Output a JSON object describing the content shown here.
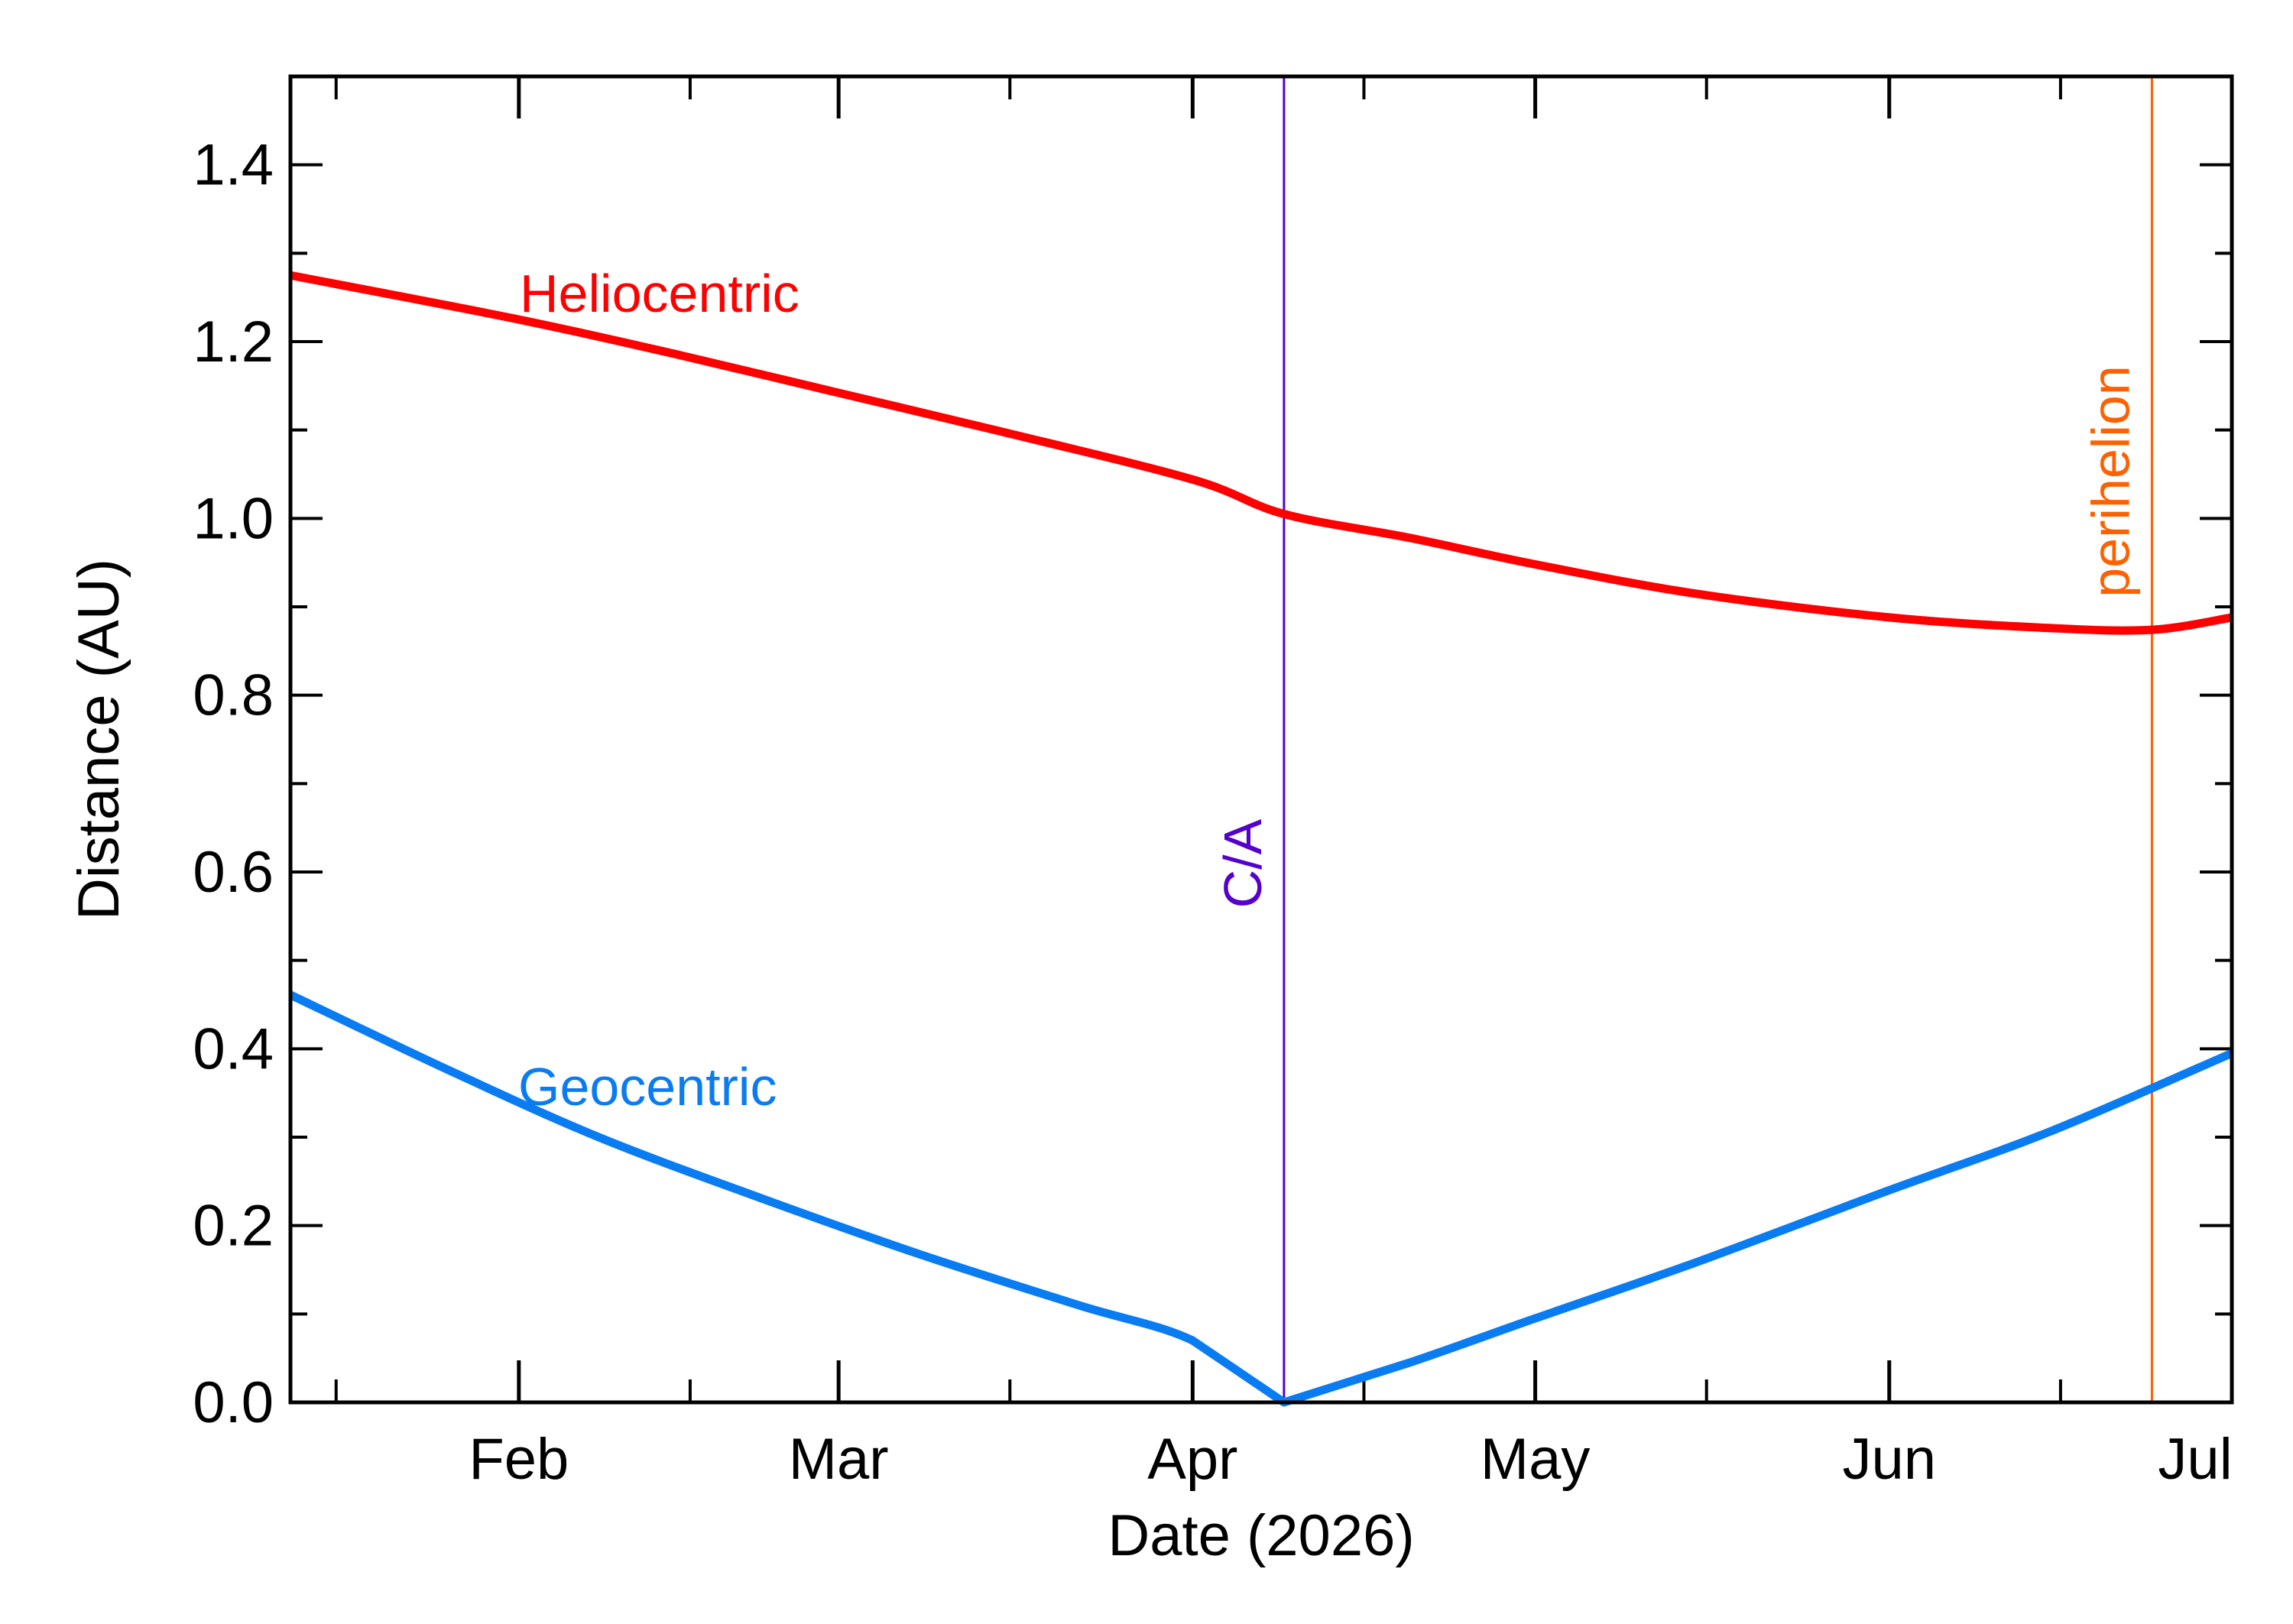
{
  "chart_data": {
    "type": "line",
    "title": "",
    "xlabel": "Date (2026)",
    "ylabel": "Distance (AU)",
    "xlim": [
      "2026-01-12",
      "2026-07-01"
    ],
    "ylim": [
      0.0,
      1.5
    ],
    "x_tick_labels": [
      "Feb",
      "Mar",
      "Apr",
      "May",
      "Jun",
      "Jul"
    ],
    "y_tick_labels": [
      "0.0",
      "0.2",
      "0.4",
      "0.6",
      "0.8",
      "1.0",
      "1.2",
      "1.4"
    ],
    "series": [
      {
        "name": "Heliocentric",
        "color": "#ff0000",
        "points": [
          [
            "2026-01-12",
            1.275
          ],
          [
            "2026-02-01",
            1.225
          ],
          [
            "2026-02-15",
            1.185
          ],
          [
            "2026-03-01",
            1.142
          ],
          [
            "2026-03-15",
            1.099
          ],
          [
            "2026-04-01",
            1.044
          ],
          [
            "2026-04-09",
            1.005
          ],
          [
            "2026-04-20",
            0.978
          ],
          [
            "2026-05-01",
            0.948
          ],
          [
            "2026-05-15",
            0.915
          ],
          [
            "2026-06-01",
            0.888
          ],
          [
            "2026-06-15",
            0.876
          ],
          [
            "2026-06-24",
            0.874
          ],
          [
            "2026-07-01",
            0.888
          ]
        ]
      },
      {
        "name": "Geocentric",
        "color": "#0a7cf2",
        "points": [
          [
            "2026-01-12",
            0.461
          ],
          [
            "2026-01-26",
            0.375
          ],
          [
            "2026-02-08",
            0.3
          ],
          [
            "2026-02-22",
            0.232
          ],
          [
            "2026-03-08",
            0.168
          ],
          [
            "2026-03-22",
            0.11
          ],
          [
            "2026-04-01",
            0.07
          ],
          [
            "2026-04-09",
            0.0
          ],
          [
            "2026-04-20",
            0.045
          ],
          [
            "2026-05-01",
            0.095
          ],
          [
            "2026-05-15",
            0.158
          ],
          [
            "2026-06-01",
            0.24
          ],
          [
            "2026-06-15",
            0.306
          ],
          [
            "2026-07-01",
            0.395
          ]
        ]
      }
    ],
    "vertical_markers": [
      {
        "label": "C/A",
        "date": "2026-04-09",
        "color": "#5500cc"
      },
      {
        "label": "perihelion",
        "date": "2026-06-24",
        "color": "#ff6000"
      }
    ],
    "grid": false,
    "legend": "inline labels"
  }
}
